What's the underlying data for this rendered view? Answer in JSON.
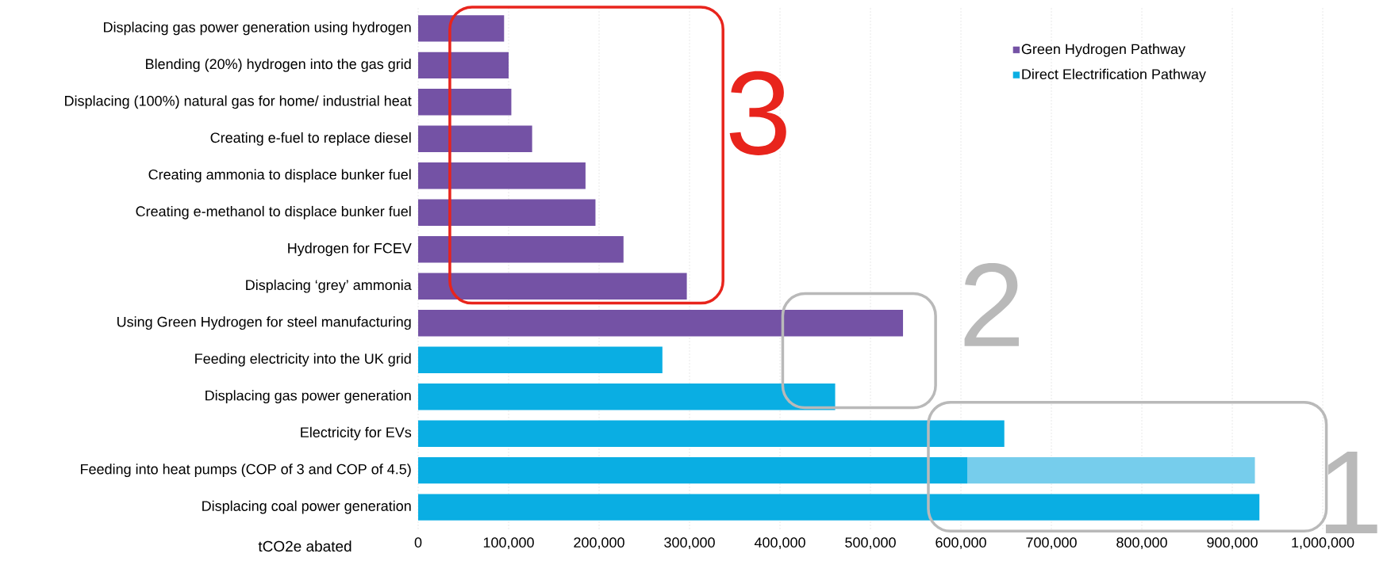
{
  "chart_data": {
    "type": "bar",
    "orientation": "horizontal",
    "stacked": true,
    "categories": [
      "Displacing gas power generation using hydrogen",
      "Blending (20%) hydrogen into the gas grid",
      "Displacing (100%) natural gas for home/ industrial heat",
      "Creating e-fuel to replace diesel",
      "Creating ammonia to displace bunker fuel",
      "Creating e-methanol to displace bunker fuel",
      "Hydrogen for FCEV",
      "Displacing ‘grey’ ammonia",
      "Using Green Hydrogen for steel manufacturing",
      "Feeding electricity into the UK grid",
      "Displacing gas power generation",
      "Electricity for EVs",
      "Feeding into heat pumps (COP of 3 and COP of 4.5)",
      "Displacing coal power generation"
    ],
    "series": [
      {
        "name": "Green Hydrogen Pathway",
        "color": "#7452a5",
        "values": [
          95000,
          100000,
          103000,
          126000,
          185000,
          196000,
          227000,
          297000,
          536000,
          null,
          null,
          null,
          null,
          null
        ]
      },
      {
        "name": "Direct Electrification Pathway",
        "color": "#0aaee3",
        "values": [
          null,
          null,
          null,
          null,
          null,
          null,
          null,
          null,
          null,
          270000,
          461000,
          648000,
          607000,
          930000
        ]
      },
      {
        "color": "#76cdec",
        "values": [
          null,
          null,
          null,
          null,
          null,
          null,
          null,
          null,
          null,
          null,
          null,
          null,
          318000,
          null
        ]
      }
    ],
    "xlabel": "tCO2e abated",
    "xlim": [
      0,
      1000000
    ],
    "xticks": [
      0,
      {
        "value": 100000,
        "label": "100,000"
      },
      {
        "value": 200000,
        "label": "200,000"
      },
      {
        "value": 300000,
        "label": "300,000"
      },
      {
        "value": 400000,
        "label": "400,000"
      },
      {
        "value": 500000,
        "label": "500,000"
      },
      {
        "value": 600000,
        "label": "600,000"
      },
      {
        "value": 700000,
        "label": "700,000"
      },
      {
        "value": 800000,
        "label": "800,000"
      },
      {
        "value": 900000,
        "label": "900,000"
      },
      {
        "value": 1000000,
        "label": "1,000,000"
      }
    ],
    "grid": "x",
    "legend": "top right",
    "annotations": [
      "3",
      "2",
      "1"
    ]
  }
}
